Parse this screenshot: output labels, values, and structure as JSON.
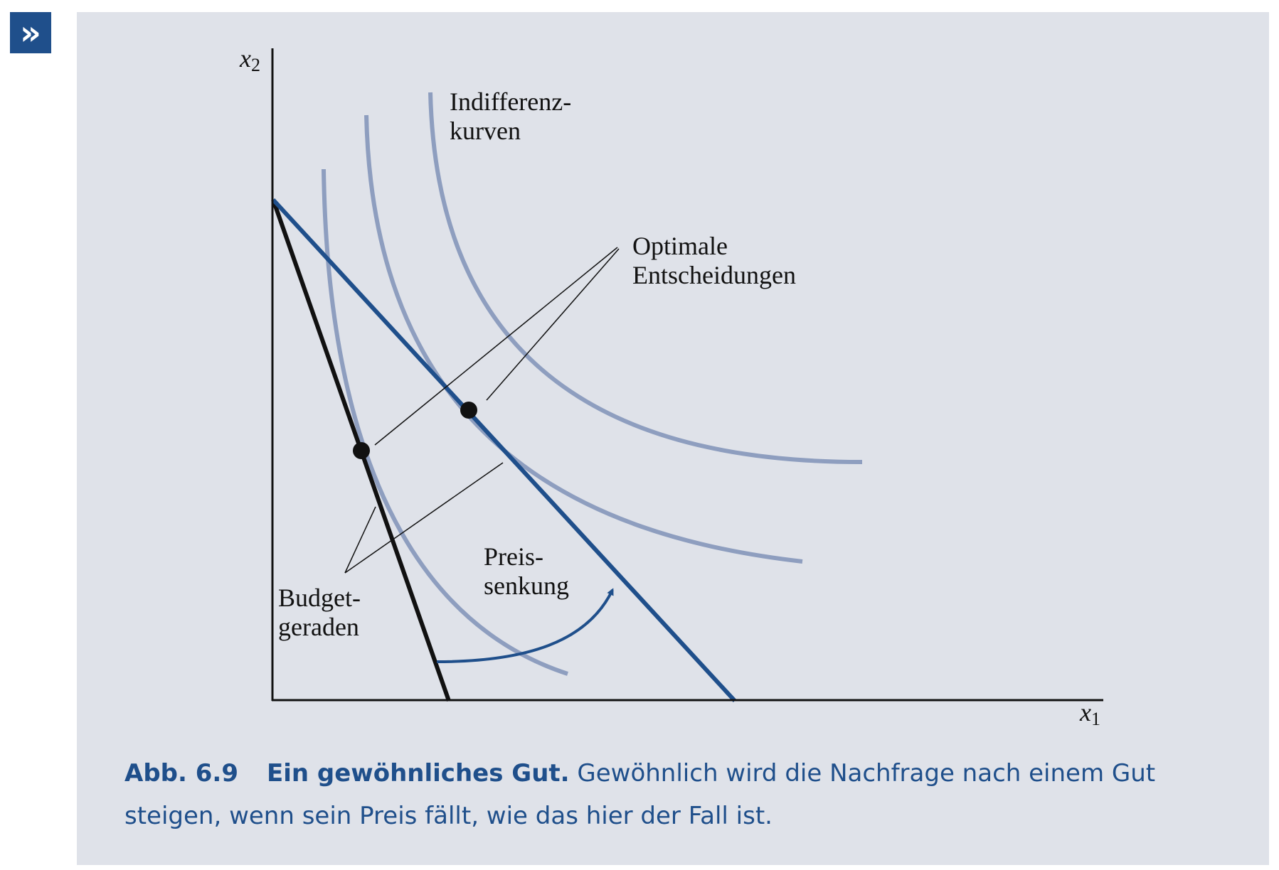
{
  "badge": {
    "icon": "double-chevron-right-icon",
    "glyph": "»",
    "color": "#1f4f8b"
  },
  "colors": {
    "panel": "#dfe2e9",
    "accent": "#1f4f8b",
    "indifference": "#8e9ebf",
    "axis": "#111111"
  },
  "axes": {
    "x": "x",
    "x_sub": "1",
    "y": "x",
    "y_sub": "2"
  },
  "labels": {
    "indifference_line1": "Indifferenz-",
    "indifference_line2": "kurven",
    "optimal_line1": "Optimale",
    "optimal_line2": "Entscheidungen",
    "price_line1": "Preis-",
    "price_line2": "senkung",
    "budget_line1": "Budget-",
    "budget_line2": "geraden"
  },
  "caption": {
    "number": "Abb. 6.9",
    "title": "Ein gewöhnliches Gut.",
    "text": " Gewöhnlich wird die Nachfrage nach einem Gut steigen, wenn sein Preis fällt, wie das hier der Fall ist."
  }
}
